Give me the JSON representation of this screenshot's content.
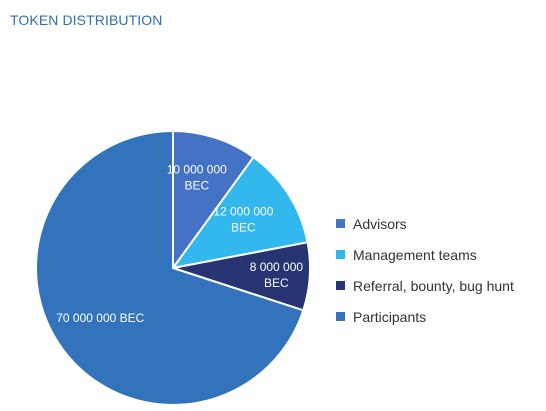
{
  "chart_data": {
    "type": "pie",
    "title": "TOKEN DISTRIBUTION",
    "unit": "BEC",
    "slices": [
      {
        "name": "Advisors",
        "value": 10000000,
        "label_lines": [
          "10 000 000",
          "BEC"
        ],
        "color": "#4472c4"
      },
      {
        "name": "Management teams",
        "value": 12000000,
        "label_lines": [
          "12 000 000",
          "BEC"
        ],
        "color": "#33b8ee"
      },
      {
        "name": "Referral, bounty, bug hunt",
        "value": 8000000,
        "label_lines": [
          "8 000 000",
          "BEC"
        ],
        "color": "#263572"
      },
      {
        "name": "Participants",
        "value": 70000000,
        "label_lines": [
          "70 000 000 BEC"
        ],
        "color": "#3373bc"
      }
    ],
    "legend_placement": "right"
  }
}
